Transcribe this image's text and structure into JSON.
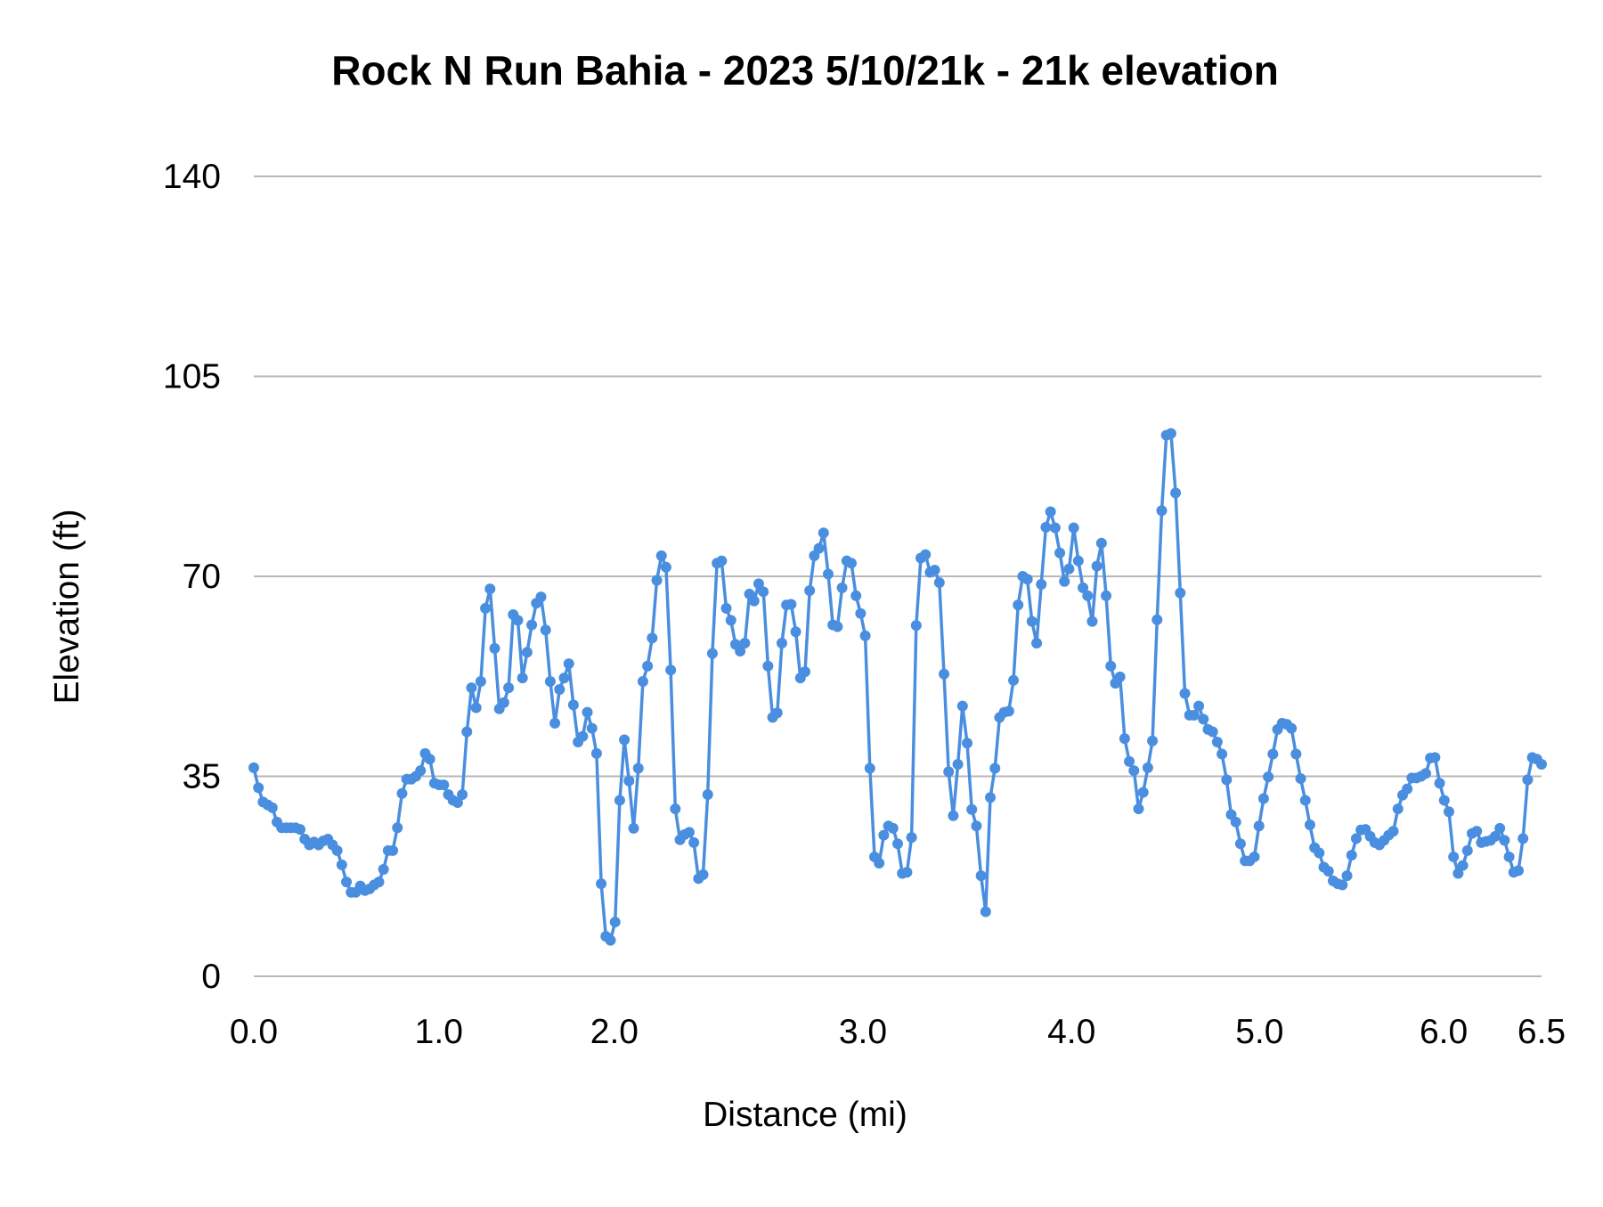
{
  "chart_data": {
    "type": "line",
    "title": "Rock N Run Bahia - 2023 5/10/21k - 21k elevation",
    "xlabel": "Distance (mi)",
    "ylabel": "Elevation (ft)",
    "ylim": [
      0,
      140
    ],
    "y_ticks": [
      "0",
      "35",
      "70",
      "105",
      "140"
    ],
    "x_tick_labels": [
      "0.0",
      "1.0",
      "2.0",
      "3.0",
      "4.0",
      "5.0",
      "6.0",
      "6.5"
    ],
    "grid": true,
    "legend": "none",
    "markers": true,
    "colors": {
      "series": "#4a8ee0",
      "grid": "#b7b7b7"
    },
    "series": [
      {
        "values": [
          36.5,
          33,
          30.5,
          30,
          29.5,
          27,
          26,
          26,
          26,
          26,
          25.7,
          24,
          23,
          23.5,
          23,
          23.7,
          24,
          23,
          22,
          19.5,
          16.5,
          14.7,
          14.7,
          15.8,
          15,
          15.3,
          16,
          16.5,
          18.7,
          22,
          22,
          26,
          32,
          34.5,
          34.5,
          35,
          36,
          39,
          38,
          33.8,
          33.5,
          33.5,
          31.8,
          30.8,
          30.4,
          31.8,
          42.8,
          50.5,
          47,
          51.6,
          64.4,
          67.8,
          57.4,
          46.8,
          47.9,
          50.5,
          63.3,
          62.3,
          52.2,
          56.7,
          61.5,
          65.3,
          66.4,
          60.6,
          51.6,
          44.3,
          50.2,
          52.2,
          54.7,
          47.5,
          41,
          42,
          46.2,
          43.4,
          39,
          16.2,
          7,
          6.3,
          9.5,
          30.8,
          41.4,
          34.2,
          25.9,
          36.4,
          51.6,
          54.3,
          59.2,
          69.3,
          73.6,
          71.6,
          53.6,
          29.3,
          23.9,
          24.8,
          25.2,
          23.4,
          17.1,
          17.8,
          31.8,
          56.5,
          72.3,
          72.7,
          64.4,
          62.3,
          58.1,
          56.9,
          58.3,
          66.9,
          65.7,
          68.7,
          67.3,
          54.3,
          45.3,
          46.1,
          58.3,
          65,
          65.1,
          60.3,
          52.2,
          53.3,
          67.5,
          73.6,
          74.9,
          77.6,
          70.4,
          61.5,
          61.2,
          68,
          72.7,
          72.3,
          66.6,
          63.5,
          59.6,
          36.4,
          20.9,
          19.8,
          24.7,
          26.3,
          25.9,
          23.2,
          18,
          18.2,
          24.3,
          61.4,
          73.2,
          73.8,
          70.7,
          71.1,
          68.9,
          52.9,
          35.8,
          28.1,
          37.1,
          47.3,
          40.8,
          29.2,
          26.3,
          17.6,
          11.3,
          31.3,
          36.4,
          45.3,
          46.2,
          46.4,
          51.8,
          65,
          70,
          69.5,
          62.1,
          58.3,
          68.6,
          78.6,
          81.3,
          78.5,
          74.1,
          69.1,
          71.3,
          78.5,
          72.7,
          68,
          66.6,
          62.1,
          71.8,
          75.8,
          66.6,
          54.3,
          51.3,
          52.4,
          41.6,
          37.6,
          36,
          29.3,
          32.2,
          36.5,
          41.2,
          62.4,
          81.5,
          94.7,
          95,
          84.6,
          67.1,
          49.5,
          45.7,
          45.7,
          47.3,
          45,
          43.2,
          42.8,
          41,
          38.9,
          34.4,
          28.3,
          27,
          23.2,
          20.2,
          20.2,
          20.9,
          26.3,
          31.1,
          34.9,
          38.9,
          43.2,
          44.3,
          44.1,
          43.4,
          38.9,
          34.6,
          30.8,
          26.5,
          22.5,
          21.6,
          19.1,
          18.4,
          16.7,
          16.2,
          16,
          17.6,
          21.2,
          24.1,
          25.6,
          25.7,
          24.5,
          23.4,
          23,
          23.8,
          24.7,
          25.4,
          29.3,
          31.7,
          32.8,
          34.7,
          34.7,
          35,
          35.5,
          38.2,
          38.3,
          33.8,
          30.8,
          28.8,
          20.9,
          18,
          19.4,
          22,
          25,
          25.4,
          23.4,
          23.6,
          23.8,
          24.5,
          25.9,
          23.8,
          20.9,
          18.2,
          18.5,
          24.1,
          34.4,
          38.3,
          38,
          37.1
        ]
      }
    ]
  }
}
